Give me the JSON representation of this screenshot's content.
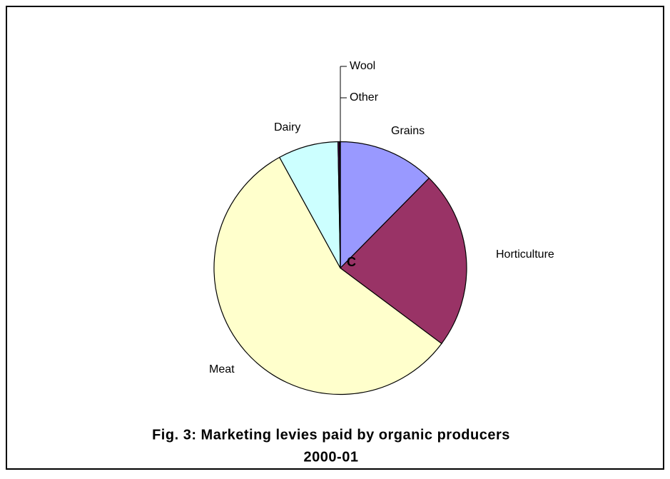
{
  "chart_data": {
    "type": "pie",
    "title": [
      "Fig. 3: Marketing levies paid by organic producers",
      "2000-01"
    ],
    "annotation": "C",
    "categories": [
      "Grains",
      "Horticulture",
      "Meat",
      "Dairy",
      "Other",
      "Wool"
    ],
    "values": [
      12.4,
      22.8,
      56.8,
      7.7,
      0.2,
      0.1
    ],
    "colors": [
      "#9999ff",
      "#993366",
      "#ffffcc",
      "#ccffff",
      "#660066",
      "#ff8080"
    ]
  }
}
